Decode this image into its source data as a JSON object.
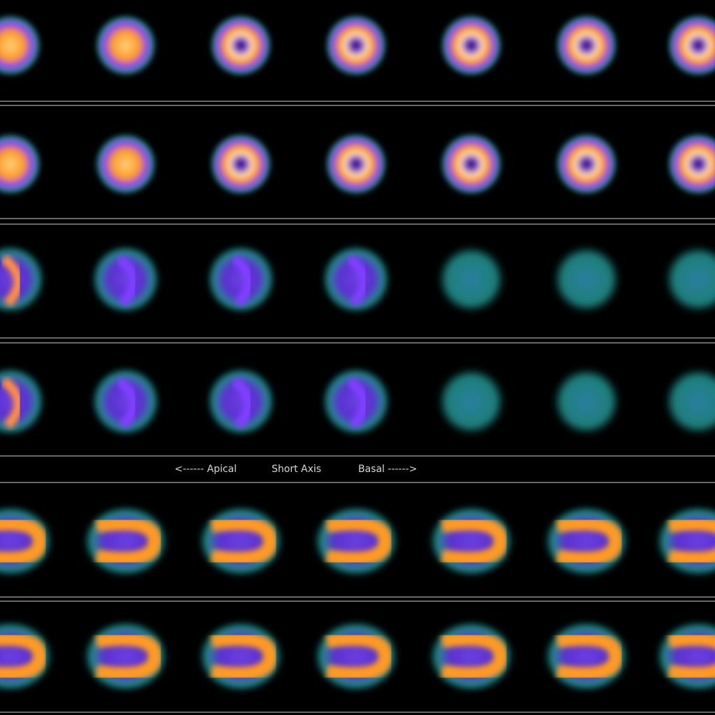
{
  "labels": {
    "apical": "<------ Apical",
    "view": "Short Axis",
    "basal": "Basal ------>"
  }
}
